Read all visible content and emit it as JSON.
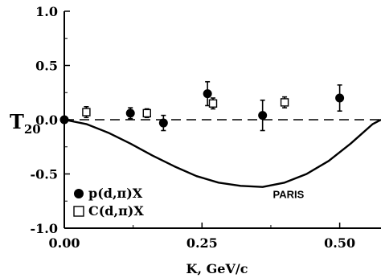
{
  "chart_data": {
    "type": "scatter",
    "title": "",
    "xlabel": "K, GeV/c",
    "ylabel": "T",
    "ylabel_sub": "20",
    "xlim": [
      0.0,
      0.575
    ],
    "ylim": [
      -1.0,
      1.0
    ],
    "x_ticks": [
      0.0,
      0.25,
      0.5
    ],
    "x_tick_labels": [
      "0.00",
      "0.25",
      "0.50"
    ],
    "y_ticks": [
      1.0,
      0.5,
      0.0,
      -0.5,
      -1.0
    ],
    "y_tick_labels": [
      "1.0",
      "0.5",
      "0.0",
      "-0.5",
      "-1.0"
    ],
    "grid": false,
    "legend_position": "bottom-left",
    "series": [
      {
        "name": "p(d,π)X",
        "marker": "filled-circle",
        "points": [
          {
            "x": 0.0,
            "y": 0.0,
            "err": 0.0
          },
          {
            "x": 0.12,
            "y": 0.06,
            "err": 0.05
          },
          {
            "x": 0.18,
            "y": -0.03,
            "err": 0.07
          },
          {
            "x": 0.26,
            "y": 0.24,
            "err": 0.11
          },
          {
            "x": 0.36,
            "y": 0.04,
            "err": 0.14
          },
          {
            "x": 0.5,
            "y": 0.2,
            "err": 0.12
          }
        ]
      },
      {
        "name": "C(d,π)X",
        "marker": "open-square",
        "points": [
          {
            "x": 0.04,
            "y": 0.07,
            "err": 0.05
          },
          {
            "x": 0.15,
            "y": 0.06,
            "err": 0.04
          },
          {
            "x": 0.27,
            "y": 0.15,
            "err": 0.05
          },
          {
            "x": 0.4,
            "y": 0.16,
            "err": 0.05
          }
        ]
      }
    ],
    "reference_line": {
      "y": 0.0,
      "style": "dashed"
    },
    "curves": [
      {
        "name": "PARIS",
        "style": "solid",
        "points": [
          [
            0.0,
            0.0
          ],
          [
            0.04,
            -0.04
          ],
          [
            0.08,
            -0.12
          ],
          [
            0.12,
            -0.22
          ],
          [
            0.16,
            -0.33
          ],
          [
            0.2,
            -0.43
          ],
          [
            0.24,
            -0.52
          ],
          [
            0.28,
            -0.58
          ],
          [
            0.32,
            -0.61
          ],
          [
            0.36,
            -0.62
          ],
          [
            0.4,
            -0.58
          ],
          [
            0.44,
            -0.5
          ],
          [
            0.48,
            -0.38
          ],
          [
            0.52,
            -0.22
          ],
          [
            0.56,
            -0.04
          ],
          [
            0.575,
            0.0
          ]
        ]
      }
    ]
  }
}
